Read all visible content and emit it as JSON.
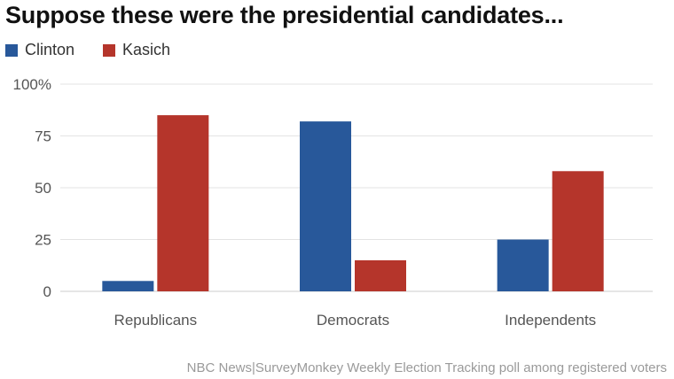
{
  "chart_data": {
    "type": "bar",
    "title": "Suppose these were the presidential candidates...",
    "categories": [
      "Republicans",
      "Democrats",
      "Independents"
    ],
    "series": [
      {
        "name": "Clinton",
        "color": "#28589a",
        "values": [
          5,
          82,
          25
        ]
      },
      {
        "name": "Kasich",
        "color": "#b5352b",
        "values": [
          85,
          15,
          58
        ]
      }
    ],
    "ylim": [
      0,
      100
    ],
    "yticks": [
      0,
      25,
      50,
      75,
      100
    ],
    "ytick_labels": [
      "0",
      "25",
      "50",
      "75",
      "100%"
    ],
    "grid": true,
    "legend": "top-left",
    "source": "NBC News|SurveyMonkey Weekly Election Tracking poll among registered voters"
  }
}
